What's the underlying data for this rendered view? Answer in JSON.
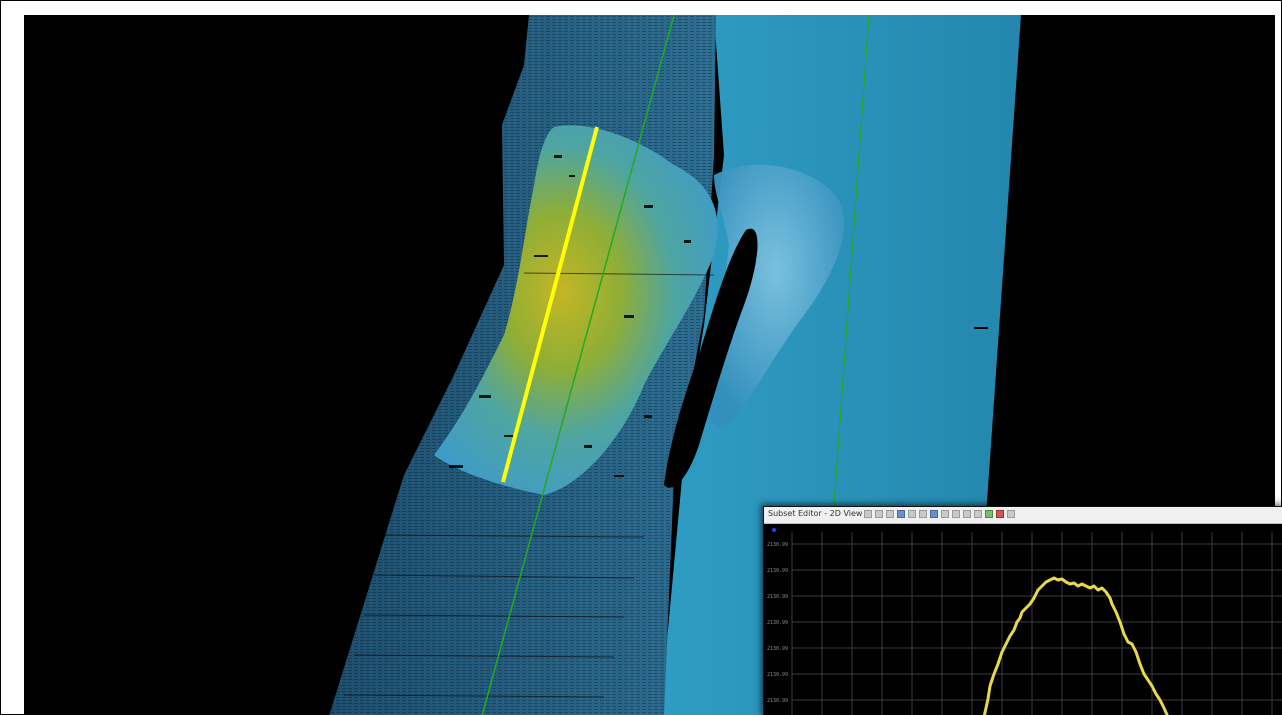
{
  "window": {
    "background": "#000000",
    "frame_border": "#000000"
  },
  "map": {
    "colors": {
      "deep": "#2a93b6",
      "mid": "#3d8fb8",
      "shallow_yellow": "#b4b12a",
      "shallow_green": "#6aa844",
      "track_line": "#22aa22",
      "profile_line": "#ffff00"
    },
    "icons": [
      "blue-marker-icon"
    ]
  },
  "subset_editor": {
    "title": "Subset Editor - 2D View",
    "y_axis_labels": [
      "2130.99",
      "2130.99",
      "2130.99",
      "2130.99",
      "2130.99",
      "2130.99",
      "2130.99"
    ],
    "profile_color": "#e8d94a",
    "grid_color": "#3a3a3a",
    "toolbar_icons": [
      "select-icon",
      "zoom-icon",
      "pan-icon",
      "rotate-icon",
      "ruler-icon",
      "filter-icon",
      "layers-icon",
      "settings-icon",
      "color-icon",
      "undo-icon",
      "redo-icon",
      "play-icon",
      "stop-icon",
      "close-icon"
    ]
  }
}
